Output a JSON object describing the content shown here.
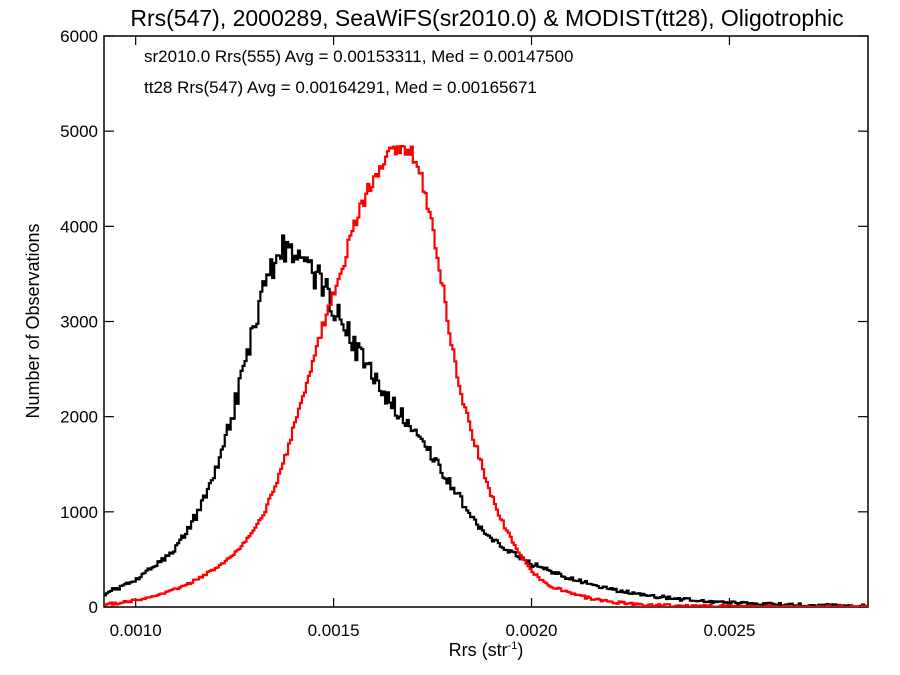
{
  "chart_data": {
    "type": "line",
    "title": "Rrs(547), 2000289, SeaWiFS(sr2010.0) & MODIST(tt28), Oligotrophic",
    "xlabel": "Rrs (str",
    "xlabel_sup": "-1",
    "xlabel_close": ")",
    "ylabel": "Number of Observations",
    "xlim": [
      0.00092,
      0.00285
    ],
    "ylim": [
      0,
      6000
    ],
    "x_ticks": [
      {
        "value": 0.001,
        "label": "0.0010"
      },
      {
        "value": 0.0015,
        "label": "0.0015"
      },
      {
        "value": 0.002,
        "label": "0.0020"
      },
      {
        "value": 0.0025,
        "label": "0.0025"
      }
    ],
    "y_ticks": [
      {
        "value": 0,
        "label": "0"
      },
      {
        "value": 1000,
        "label": "1000"
      },
      {
        "value": 2000,
        "label": "2000"
      },
      {
        "value": 3000,
        "label": "3000"
      },
      {
        "value": 4000,
        "label": "4000"
      },
      {
        "value": 5000,
        "label": "5000"
      },
      {
        "value": 6000,
        "label": "6000"
      }
    ],
    "grid": false,
    "legend_position": "top-left",
    "series": [
      {
        "name": "sr2010.0 Rrs(555) Avg = 0.00153311, Med = 0.00147500",
        "color": "#000000",
        "style": "step",
        "x": [
          0.00092,
          0.00095,
          0.001,
          0.00105,
          0.0011,
          0.00113,
          0.00116,
          0.00118,
          0.0012,
          0.00122,
          0.00124,
          0.00126,
          0.00128,
          0.0013,
          0.00132,
          0.00134,
          0.00136,
          0.00138,
          0.0014,
          0.00142,
          0.00144,
          0.00146,
          0.00148,
          0.0015,
          0.00152,
          0.00154,
          0.00156,
          0.00158,
          0.0016,
          0.00162,
          0.00164,
          0.00166,
          0.00168,
          0.0017,
          0.00172,
          0.00174,
          0.00176,
          0.00178,
          0.0018,
          0.00182,
          0.00184,
          0.00186,
          0.00188,
          0.0019,
          0.00192,
          0.00194,
          0.00196,
          0.00198,
          0.002,
          0.00205,
          0.0021,
          0.00215,
          0.0022,
          0.00225,
          0.0023,
          0.0024,
          0.0025,
          0.0026,
          0.0027,
          0.00285
        ],
        "y": [
          130,
          190,
          290,
          430,
          620,
          800,
          1000,
          1200,
          1430,
          1680,
          1950,
          2250,
          2600,
          2950,
          3250,
          3520,
          3700,
          3760,
          3740,
          3660,
          3580,
          3460,
          3320,
          3170,
          3000,
          2840,
          2690,
          2550,
          2410,
          2290,
          2180,
          2070,
          1960,
          1850,
          1740,
          1620,
          1500,
          1380,
          1260,
          1130,
          1010,
          900,
          800,
          720,
          650,
          590,
          540,
          500,
          450,
          370,
          300,
          240,
          190,
          150,
          115,
          75,
          45,
          30,
          20,
          10
        ]
      },
      {
        "name": "tt28 Rrs(547) Avg = 0.00164291, Med = 0.00165671",
        "color": "#ff0000",
        "style": "step",
        "x": [
          0.00092,
          0.00095,
          0.001,
          0.00105,
          0.0011,
          0.00115,
          0.0012,
          0.00125,
          0.00128,
          0.0013,
          0.00132,
          0.00134,
          0.00136,
          0.00138,
          0.0014,
          0.00142,
          0.00144,
          0.00146,
          0.00148,
          0.0015,
          0.00152,
          0.00154,
          0.00156,
          0.00158,
          0.0016,
          0.00162,
          0.00164,
          0.00166,
          0.00168,
          0.0017,
          0.00172,
          0.00174,
          0.00176,
          0.00178,
          0.0018,
          0.00182,
          0.00184,
          0.00186,
          0.00188,
          0.0019,
          0.00192,
          0.00194,
          0.00196,
          0.00198,
          0.002,
          0.00202,
          0.00205,
          0.0021,
          0.00215,
          0.0022,
          0.00225,
          0.0023,
          0.0024,
          0.0025,
          0.0026,
          0.0027,
          0.00285
        ],
        "y": [
          30,
          40,
          70,
          110,
          180,
          280,
          400,
          560,
          700,
          820,
          960,
          1140,
          1350,
          1600,
          1880,
          2170,
          2460,
          2760,
          3050,
          3300,
          3550,
          3830,
          4100,
          4330,
          4520,
          4650,
          4750,
          4790,
          4810,
          4770,
          4560,
          4200,
          3780,
          3260,
          2720,
          2280,
          1970,
          1690,
          1420,
          1160,
          950,
          780,
          620,
          500,
          380,
          300,
          220,
          140,
          90,
          55,
          35,
          20,
          10,
          5,
          3,
          2,
          1
        ]
      }
    ]
  }
}
